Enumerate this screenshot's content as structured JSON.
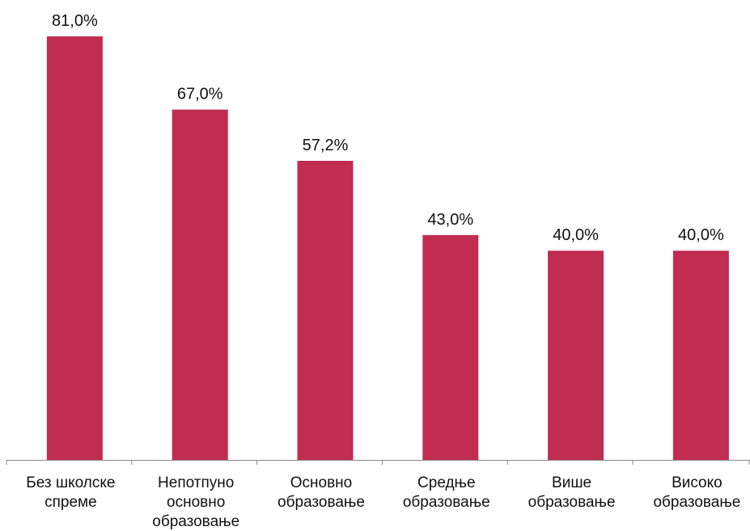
{
  "chart_data": {
    "type": "bar",
    "categories": [
      [
        "Без школске",
        "спреме"
      ],
      [
        "Непотпуно",
        "основно",
        "образовање"
      ],
      [
        "Основно",
        "образовање"
      ],
      [
        "Средње",
        "образовање"
      ],
      [
        "Више",
        "образовање"
      ],
      [
        "Високо",
        "образовање"
      ]
    ],
    "values": [
      81.0,
      67.0,
      57.2,
      43.0,
      40.0,
      40.0
    ],
    "value_labels": [
      "81,0%",
      "67,0%",
      "57,2%",
      "43,0%",
      "40,0%",
      "40,0%"
    ],
    "title": "",
    "xlabel": "",
    "ylabel": "",
    "ylim": [
      0,
      85
    ],
    "grid": false,
    "legend": "none",
    "bar_color": "#c02d50",
    "axis_color": "#888888"
  }
}
